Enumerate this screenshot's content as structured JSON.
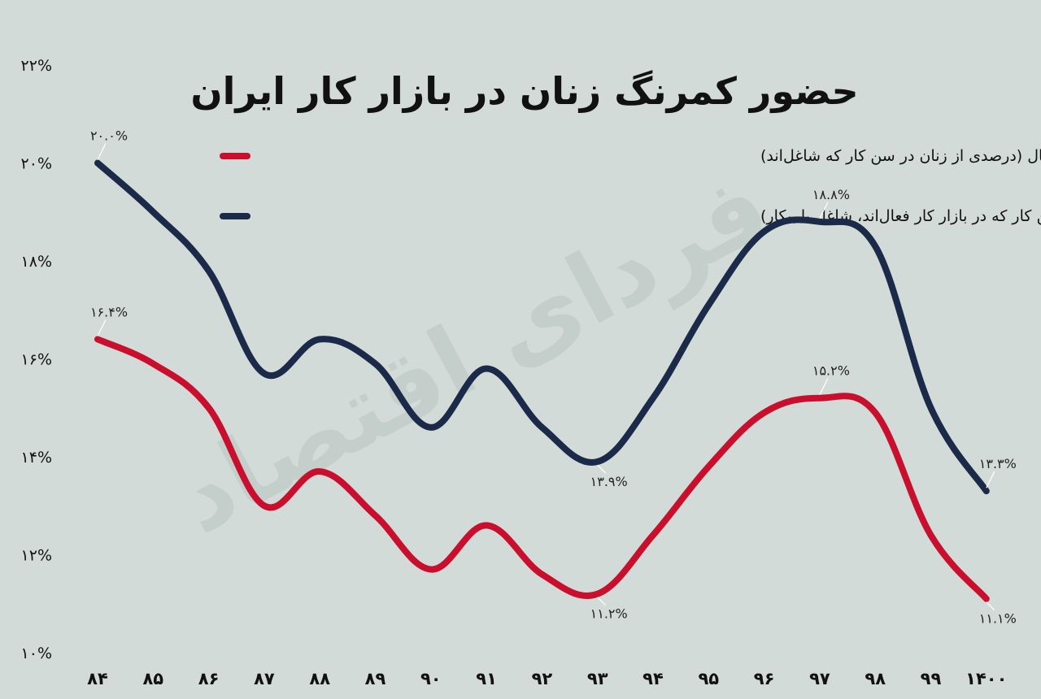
{
  "chart_data": {
    "type": "line",
    "title": "حضور کمرنگ زنان در بازار کار ایران",
    "watermark": "فردای اقتصاد",
    "categories": [
      "۸۴",
      "۸۵",
      "۸۶",
      "۸۷",
      "۸۸",
      "۸۹",
      "۹۰",
      "۹۱",
      "۹۲",
      "۹۳",
      "۹۴",
      "۹۵",
      "۹۶",
      "۹۷",
      "۹۸",
      "۹۹",
      "۱۴۰۰"
    ],
    "y_ticks": [
      "۱۰%",
      "۱۲%",
      "۱۴%",
      "۱۶%",
      "۱۸%",
      "۲۰%",
      "۲۲%"
    ],
    "ylim": [
      10,
      22
    ],
    "series": [
      {
        "name": "نرخ مشارکت (درصدی از زنان در سن کار که در بازار کار فعال‌اند، شاغل یا بیکار)",
        "color": "#1a2a48",
        "values": [
          20.0,
          19.0,
          17.8,
          15.7,
          16.4,
          15.9,
          14.6,
          15.8,
          14.6,
          13.9,
          15.2,
          17.1,
          18.6,
          18.8,
          18.3,
          15.0,
          13.3
        ]
      },
      {
        "name": "نسبت اشتغال (درصدی از زنان در سن کار که شاغل‌اند)",
        "color": "#c8102e",
        "values": [
          16.4,
          15.9,
          15.0,
          13.0,
          13.7,
          12.8,
          11.7,
          12.6,
          11.6,
          11.2,
          12.4,
          13.8,
          14.9,
          15.2,
          14.9,
          12.4,
          11.1
        ]
      }
    ],
    "data_labels": [
      {
        "series": 0,
        "index": 0,
        "text": "۲۰.۰%",
        "pos": "above"
      },
      {
        "series": 0,
        "index": 13,
        "text": "۱۸.۸%",
        "pos": "above"
      },
      {
        "series": 0,
        "index": 9,
        "text": "۱۳.۹%",
        "pos": "below"
      },
      {
        "series": 0,
        "index": 16,
        "text": "۱۳.۳%",
        "pos": "above"
      },
      {
        "series": 1,
        "index": 0,
        "text": "۱۶.۴%",
        "pos": "above"
      },
      {
        "series": 1,
        "index": 13,
        "text": "۱۵.۲%",
        "pos": "above"
      },
      {
        "series": 1,
        "index": 9,
        "text": "۱۱.۲%",
        "pos": "below"
      },
      {
        "series": 1,
        "index": 16,
        "text": "۱۱.۱%",
        "pos": "below"
      }
    ],
    "legend": [
      {
        "series": 1,
        "text": "نسبت اشتغال (درصدی از زنان در سن کار که شاغل‌اند)"
      },
      {
        "series": 0,
        "text": "نرخ مشارکت (درصدی از زنان در سن کار که در بازار کار فعال‌اند، شاغل یا بیکار)"
      }
    ],
    "grid": false,
    "legend_position": "top-right"
  }
}
